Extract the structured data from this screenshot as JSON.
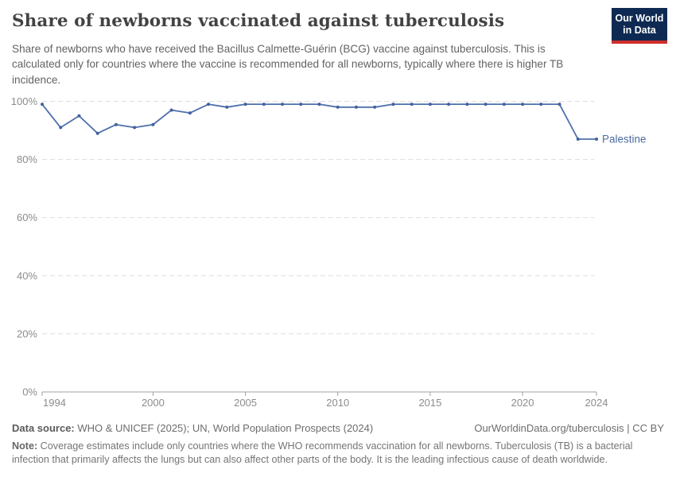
{
  "header": {
    "title": "Share of newborns vaccinated against tuberculosis",
    "subtitle": "Share of newborns who have received the Bacillus Calmette-Guérin (BCG) vaccine against tuberculosis. This is calculated only for countries where the vaccine is recommended for all newborns, typically where there is higher TB incidence.",
    "logo": {
      "line1": "Our World",
      "line2": "in Data",
      "bg_color": "#0f2a52",
      "accent_color": "#d0302c"
    }
  },
  "chart_data": {
    "type": "line",
    "title": "Share of newborns vaccinated against tuberculosis",
    "xlabel": "",
    "ylabel": "",
    "xlim": [
      1994,
      2024
    ],
    "ylim": [
      0,
      100
    ],
    "grid": "horizontal-dashed",
    "legend_position": "end-of-line-label",
    "x_ticks": [
      1994,
      2000,
      2005,
      2010,
      2015,
      2020,
      2024
    ],
    "y_ticks": [
      0,
      20,
      40,
      60,
      80,
      100
    ],
    "y_tick_labels": [
      "0%",
      "20%",
      "40%",
      "60%",
      "80%",
      "100%"
    ],
    "series": [
      {
        "name": "Palestine",
        "color": "#4e70ab",
        "marker_color": "#41629f",
        "label_color": "#4d6ba3",
        "x": [
          1994,
          1995,
          1996,
          1997,
          1998,
          1999,
          2000,
          2001,
          2002,
          2003,
          2004,
          2005,
          2006,
          2007,
          2008,
          2009,
          2010,
          2011,
          2012,
          2013,
          2014,
          2015,
          2016,
          2017,
          2018,
          2019,
          2020,
          2021,
          2022,
          2023,
          2024
        ],
        "values": [
          99,
          91,
          95,
          89,
          92,
          91,
          92,
          97,
          96,
          99,
          98,
          99,
          99,
          99,
          99,
          99,
          98,
          98,
          98,
          99,
          99,
          99,
          99,
          99,
          99,
          99,
          99,
          99,
          99,
          87,
          87
        ]
      }
    ],
    "style": {
      "grid_color": "#dedede",
      "axis_color": "#a0a0a0",
      "tick_label_color": "#8c8c8c"
    }
  },
  "footer": {
    "data_source_label": "Data source:",
    "data_source": " WHO & UNICEF (2025); UN, World Population Prospects (2024)",
    "attribution": "OurWorldinData.org/tuberculosis | CC BY",
    "note_label": "Note:",
    "note": " Coverage estimates include only countries where the WHO recommends vaccination for all newborns. Tuberculosis (TB) is a bacterial infection that primarily affects the lungs but can also affect other parts of the body. It is the leading infectious cause of death worldwide."
  }
}
